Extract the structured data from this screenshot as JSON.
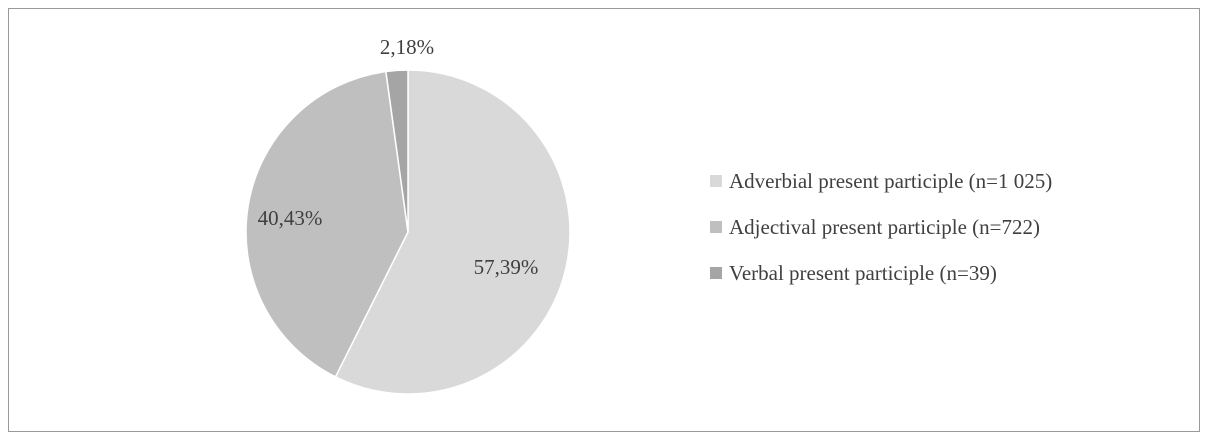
{
  "chart_data": {
    "type": "pie",
    "slices": [
      {
        "name": "Adverbial present participle (n=1 025)",
        "value": 57.39,
        "label": "57,39%",
        "color": "#d9d9d9"
      },
      {
        "name": "Adjectival present participle (n=722)",
        "value": 40.43,
        "label": "40,43%",
        "color": "#bfbfbf"
      },
      {
        "name": "Verbal present participle (n=39)",
        "value": 2.18,
        "label": "2,18%",
        "color": "#a5a5a5"
      }
    ],
    "start_angle_deg": 0,
    "direction": "clockwise",
    "legend_position": "right"
  }
}
